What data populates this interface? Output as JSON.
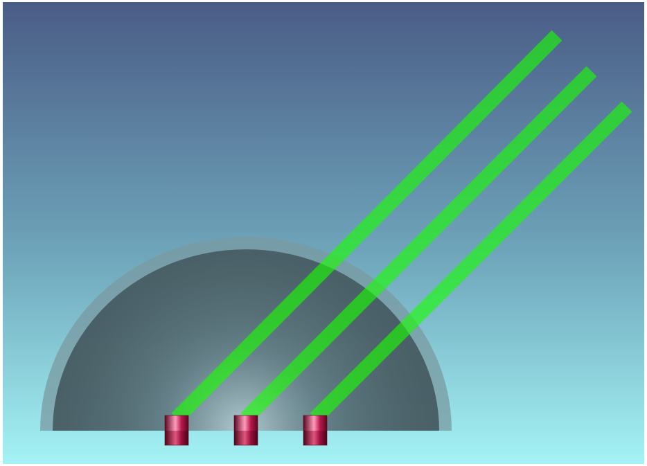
{
  "scene": {
    "background_top_color": "#4a5c86",
    "background_bottom_color": "#a4f3f5",
    "border_color": "#ffffff",
    "dome": {
      "shell_color": "#7a9aa2",
      "inner_color": "#3f5259",
      "glow_color": "#c3dde4"
    },
    "beams": {
      "color": "#19ff00",
      "count": 3
    },
    "emitters": {
      "color": "#b8184c",
      "highlight_color": "#ff9cbc",
      "dark_color": "#5a0620",
      "count": 3
    }
  }
}
